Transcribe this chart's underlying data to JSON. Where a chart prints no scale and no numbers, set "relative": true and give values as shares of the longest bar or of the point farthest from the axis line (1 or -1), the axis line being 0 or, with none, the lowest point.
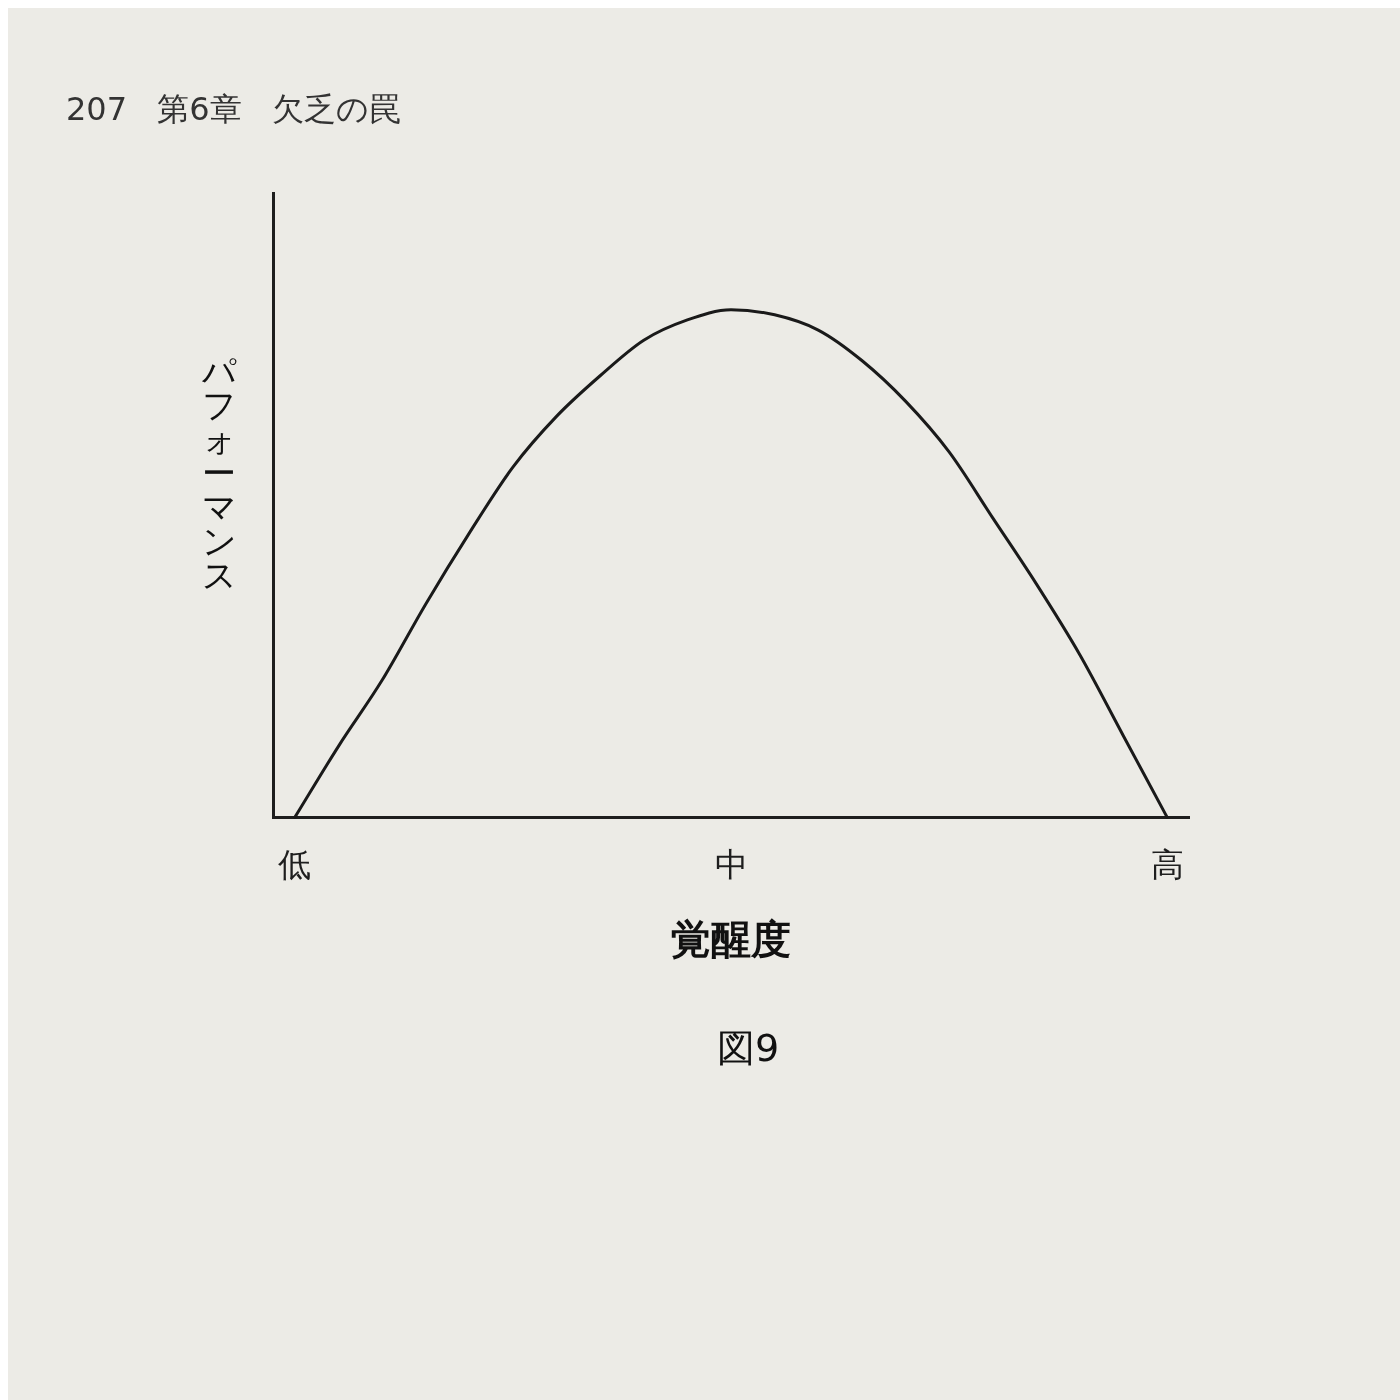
{
  "chart_data": {
    "type": "line",
    "xlabel": "覚醒度",
    "ylabel": "パフォーマンス",
    "relative": true,
    "categories": [
      "低",
      null,
      null,
      null,
      null,
      null,
      null,
      null,
      null,
      null,
      "中",
      null,
      null,
      null,
      null,
      null,
      null,
      null,
      null,
      null,
      "高"
    ],
    "series": [
      {
        "color": "#1a1a1a",
        "values": [
          0,
          0.14,
          0.27,
          0.42,
          0.56,
          0.69,
          0.79,
          0.87,
          0.94,
          0.98,
          1,
          0.99,
          0.96,
          0.9,
          0.82,
          0.72,
          0.59,
          0.46,
          0.32,
          0.16,
          0
        ]
      }
    ],
    "marker": "none",
    "line_style": "solid",
    "grid": false,
    "legend": false,
    "annotations": [
      "207 第6章 欠乏の罠",
      "図9"
    ]
  }
}
